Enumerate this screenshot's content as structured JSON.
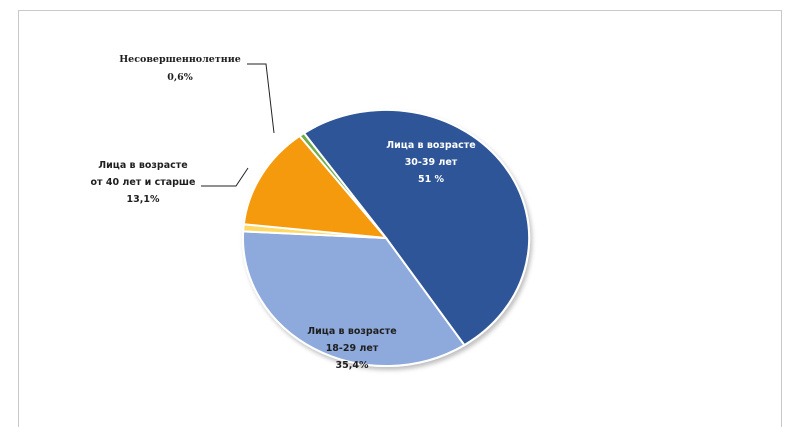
{
  "chart_data": {
    "type": "pie",
    "slices": [
      {
        "label_lines": [
          "Лица в возрасте",
          "30-39 лет",
          "51 %"
        ],
        "value": 51,
        "color": "#2F5597"
      },
      {
        "label_lines": [
          "Лица в возрасте",
          "18-29 лет",
          "35,4%"
        ],
        "value": 35.4,
        "color": "#8EA9DB"
      },
      {
        "label_lines": [
          "",
          "",
          ""
        ],
        "value": 0.9,
        "color": "#FFD966"
      },
      {
        "label_lines": [
          "Лица в возрасте",
          "от 40 лет и старше",
          "13,1%"
        ],
        "value": 13.1,
        "color": "#F59A0A"
      },
      {
        "label_lines": [
          "Несовершеннолетние",
          "0,6%"
        ],
        "value": 0.6,
        "color": "#70AD47"
      }
    ]
  }
}
